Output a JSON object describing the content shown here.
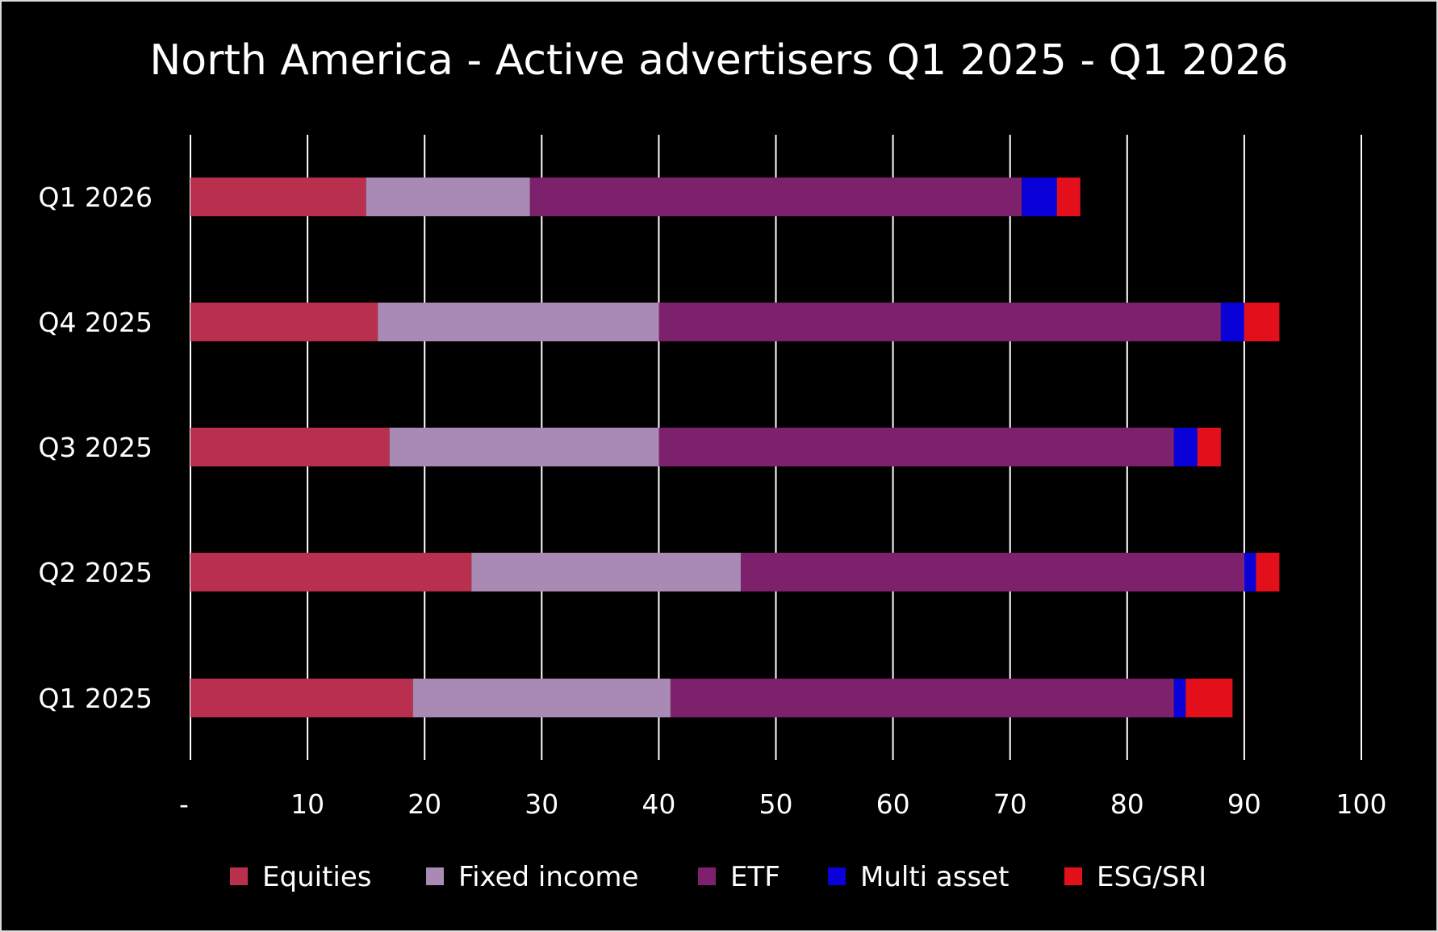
{
  "chart_data": {
    "type": "bar",
    "orientation": "horizontal",
    "stacked": true,
    "title": "North America - Active advertisers Q1 2025 - Q1 2026",
    "categories": [
      "Q1 2026",
      "Q4 2025",
      "Q3 2025",
      "Q2 2025",
      "Q1 2025"
    ],
    "series": [
      {
        "name": "Equities",
        "color": "#b92f4e",
        "values": [
          15,
          16,
          17,
          24,
          19
        ]
      },
      {
        "name": "Fixed income",
        "color": "#a98ab4",
        "values": [
          14,
          24,
          23,
          23,
          22
        ]
      },
      {
        "name": "ETF",
        "color": "#7e216d",
        "values": [
          42,
          48,
          44,
          43,
          43
        ]
      },
      {
        "name": "Multi asset",
        "color": "#0a00d8",
        "values": [
          3,
          2,
          2,
          1,
          1
        ]
      },
      {
        "name": "ESG/SRI",
        "color": "#e3101b",
        "values": [
          2,
          3,
          2,
          2,
          4
        ]
      }
    ],
    "xlim": [
      0,
      100
    ],
    "xticks": [
      0,
      10,
      20,
      30,
      40,
      50,
      60,
      70,
      80,
      90,
      100
    ],
    "xtick_labels": [
      "-",
      "10",
      "20",
      "30",
      "40",
      "50",
      "60",
      "70",
      "80",
      "90",
      "100"
    ],
    "grid": "vertical",
    "legend_position": "bottom",
    "colors": {
      "background": "#000000",
      "text": "#ffffff",
      "gridline": "#ffffff"
    }
  }
}
